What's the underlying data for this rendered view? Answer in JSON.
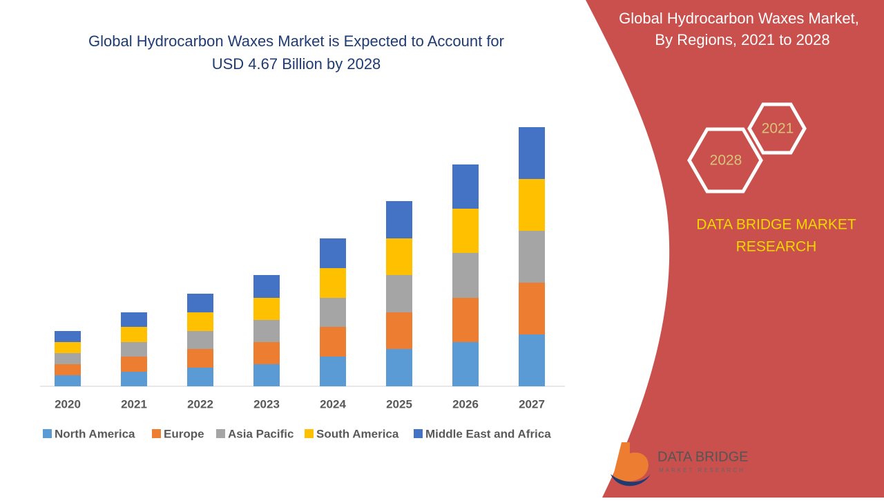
{
  "chart_data": {
    "type": "stacked_bar",
    "title": [
      "Global Hydrocarbon Waxes Market is Expected to Account for",
      "USD 4.67 Billion by 2028"
    ],
    "categories": [
      "2020",
      "2021",
      "2022",
      "2023",
      "2024",
      "2025",
      "2026",
      "2027"
    ],
    "series": [
      {
        "name": "North America",
        "color": "#5b9bd5",
        "values": [
          16,
          21,
          27,
          32,
          43,
          54,
          64,
          75
        ]
      },
      {
        "name": "Europe",
        "color": "#ed7d31",
        "values": [
          16,
          22,
          27,
          32,
          43,
          53,
          64,
          75
        ]
      },
      {
        "name": "Asia Pacific",
        "color": "#a5a5a5",
        "values": [
          16,
          21,
          26,
          32,
          42,
          54,
          65,
          75
        ]
      },
      {
        "name": "South America",
        "color": "#ffc000",
        "values": [
          16,
          22,
          27,
          32,
          43,
          53,
          64,
          75
        ]
      },
      {
        "name": "Middle East and Africa",
        "color": "#4472c4",
        "values": [
          16,
          21,
          27,
          33,
          43,
          54,
          64,
          75
        ]
      }
    ],
    "ylim": [
      0,
      400
    ],
    "legend": "bottom"
  },
  "side_panel": {
    "title": [
      "Global Hydrocarbon Waxes Market,",
      "By Regions, 2021 to 2028"
    ],
    "hexagons": [
      "2021",
      "2028"
    ],
    "brand": [
      "DATA BRIDGE MARKET",
      "RESEARCH"
    ],
    "logo": {
      "name": "DATA BRIDGE",
      "tagline": "MARKET RESEARCH"
    }
  }
}
